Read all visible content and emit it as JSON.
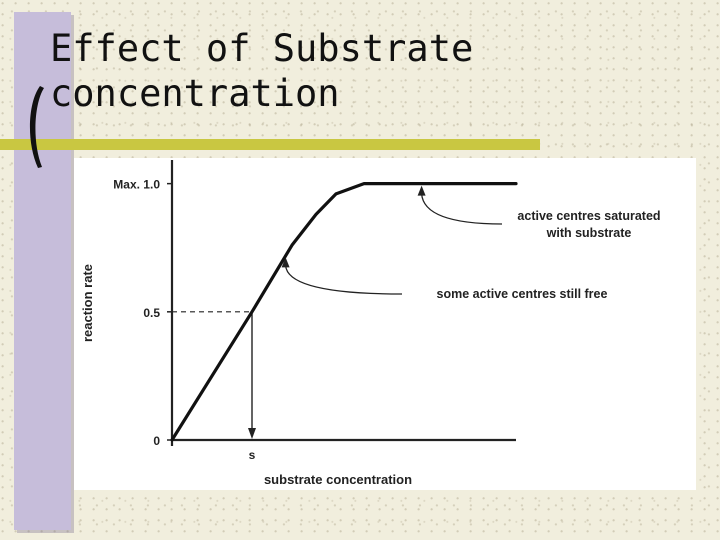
{
  "slide": {
    "title_line1": "Effect of Substrate",
    "title_line2": "concentration",
    "accent_colors": {
      "sidebar": "#c6bdda",
      "rule": "#c9c741"
    }
  },
  "chart_data": {
    "type": "line",
    "xlabel": "substrate concentration",
    "ylabel": "reaction rate",
    "y_ticks": [
      {
        "value": 0,
        "label": "0"
      },
      {
        "value": 0.5,
        "label": "0.5"
      },
      {
        "value": 1.0,
        "label": "Max. 1.0"
      }
    ],
    "x_ticks": [
      {
        "value": 1,
        "label": "s"
      }
    ],
    "xlim": [
      0,
      4.3
    ],
    "ylim": [
      0,
      1.1
    ],
    "series": [
      {
        "values": [
          {
            "x": 0,
            "y": 0
          },
          {
            "x": 1.0,
            "y": 0.5
          },
          {
            "x": 1.5,
            "y": 0.76
          },
          {
            "x": 1.8,
            "y": 0.88
          },
          {
            "x": 2.05,
            "y": 0.96
          },
          {
            "x": 2.4,
            "y": 1.0
          },
          {
            "x": 4.3,
            "y": 1.0
          }
        ]
      }
    ],
    "reference_lines": {
      "x": 1.0,
      "y": 0.5
    },
    "annotations": [
      {
        "lines": [
          "active centres saturated",
          "with substrate"
        ],
        "target": {
          "x": 3.12,
          "y": 1.0
        }
      },
      {
        "lines": [
          "some active centres still free"
        ],
        "target": {
          "x": 1.42,
          "y": 0.72
        }
      }
    ],
    "grid": false
  }
}
